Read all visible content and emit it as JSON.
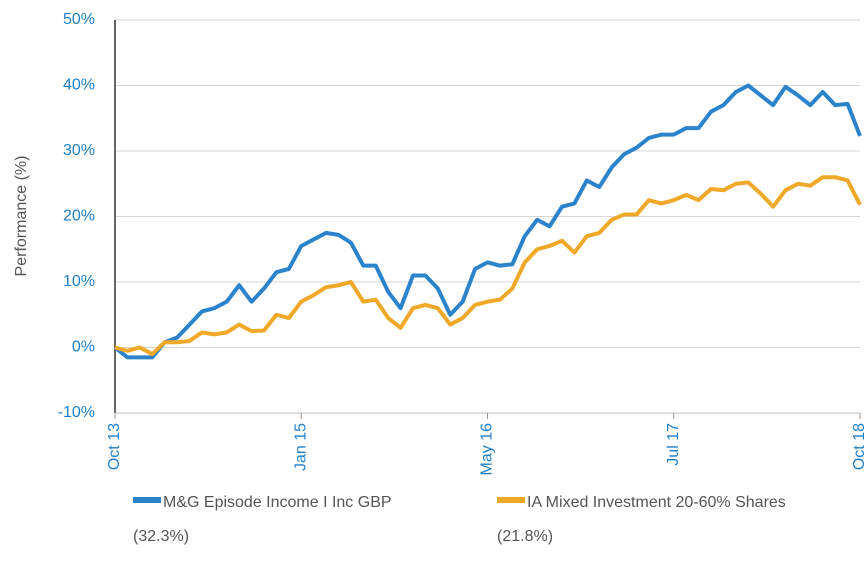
{
  "chart_data": {
    "type": "line",
    "ylabel": "Performance (%)",
    "categories": [
      "Oct 13",
      null,
      null,
      null,
      null,
      null,
      null,
      null,
      null,
      null,
      null,
      null,
      null,
      null,
      null,
      "Jan 15",
      null,
      null,
      null,
      null,
      null,
      null,
      null,
      null,
      null,
      null,
      null,
      null,
      null,
      null,
      "May 16",
      null,
      null,
      null,
      null,
      null,
      null,
      null,
      null,
      null,
      null,
      null,
      null,
      null,
      null,
      "Jul 17",
      null,
      null,
      null,
      null,
      null,
      null,
      null,
      null,
      null,
      null,
      null,
      null,
      null,
      null,
      "Oct 18"
    ],
    "series": [
      {
        "name": "M&G Episode Income I Inc GBP (32.3%)",
        "color": "#2b83cc",
        "values": [
          0,
          -1.5,
          -1.5,
          -1.5,
          0.8,
          1.5,
          3.5,
          5.5,
          6,
          7,
          9.5,
          7,
          9,
          11.5,
          12,
          15.5,
          16.5,
          17.5,
          17.2,
          16,
          12.5,
          12.5,
          8.5,
          6,
          11,
          11,
          9,
          5,
          7,
          12,
          13,
          12.5,
          12.7,
          17,
          19.5,
          18.5,
          21.5,
          22,
          25.5,
          24.5,
          27.5,
          29.5,
          30.5,
          32,
          32.5,
          32.5,
          33.5,
          33.5,
          36,
          37,
          39,
          40,
          38.5,
          37,
          39.8,
          38.5,
          37,
          39,
          37,
          37.2,
          32.3
        ]
      },
      {
        "name": "IA Mixed Investment 20-60% Shares (21.8%)",
        "color": "#f0a828",
        "values": [
          0,
          -0.5,
          0,
          -1,
          0.8,
          0.8,
          1,
          2.3,
          2,
          2.3,
          3.5,
          2.5,
          2.6,
          5,
          4.5,
          7,
          8,
          9.2,
          9.5,
          10,
          7,
          7.3,
          4.5,
          3,
          6,
          6.5,
          6,
          3.5,
          4.5,
          6.5,
          7,
          7.3,
          9,
          13,
          15,
          15.5,
          16.3,
          14.5,
          17,
          17.5,
          19.5,
          20.3,
          20.3,
          22.5,
          22,
          22.5,
          23.3,
          22.5,
          24.2,
          24,
          25,
          25.2,
          23.5,
          21.5,
          24,
          25,
          24.7,
          26,
          26,
          25.5,
          21.8
        ]
      }
    ],
    "ylim": [
      -10,
      50
    ],
    "yticks": [
      {
        "value": -10,
        "label": "-10%"
      },
      {
        "value": 0,
        "label": "0%"
      },
      {
        "value": 10,
        "label": "10%"
      },
      {
        "value": 20,
        "label": "20%"
      },
      {
        "value": 30,
        "label": "30%"
      },
      {
        "value": 40,
        "label": "40%"
      },
      {
        "value": 50,
        "label": "50%"
      }
    ],
    "grid": true
  }
}
